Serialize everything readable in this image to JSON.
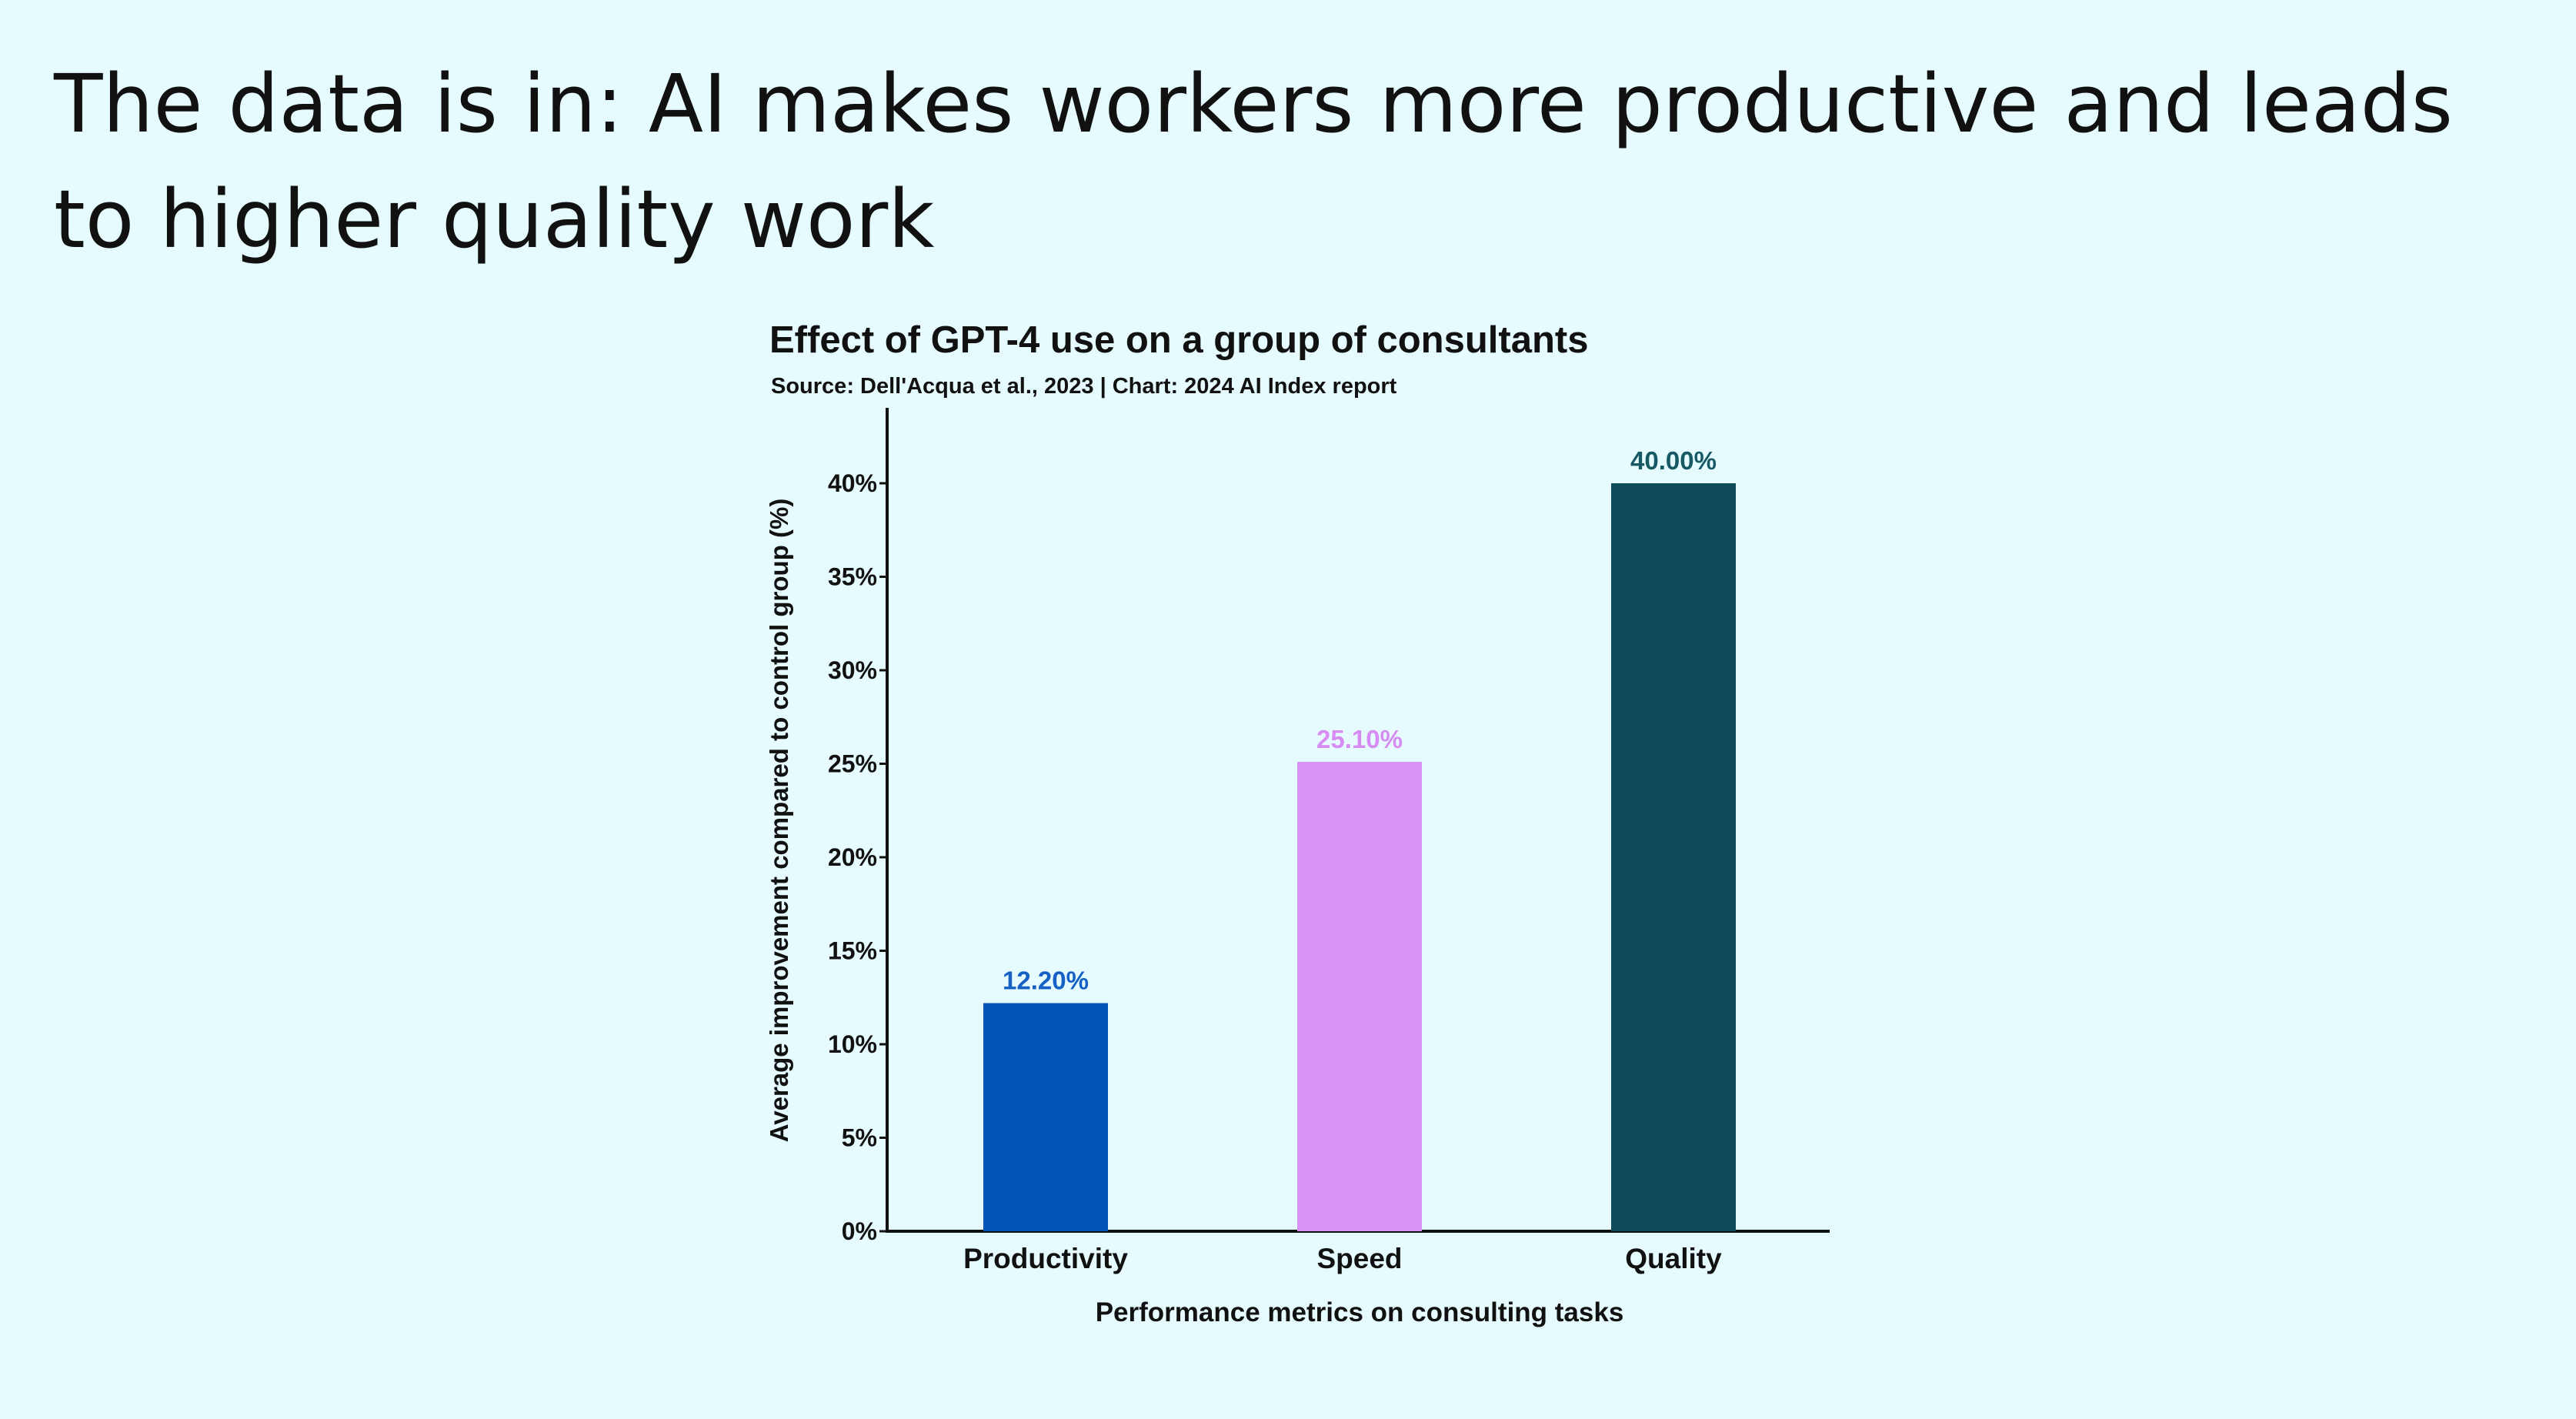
{
  "slide": {
    "title": "The data is in: AI makes workers more productive and leads to higher quality work"
  },
  "chart_data": {
    "type": "bar",
    "title": "Effect of GPT-4 use on a group of consultants",
    "subtitle": "Source: Dell'Acqua et al., 2023 | Chart: 2024 AI Index report",
    "xlabel": "Performance metrics on consulting tasks",
    "ylabel": "Average improvement compared to control group (%)",
    "categories": [
      "Productivity",
      "Speed",
      "Quality"
    ],
    "values": [
      12.2,
      25.1,
      40.0
    ],
    "data_labels": [
      "12.20%",
      "25.10%",
      "40.00%"
    ],
    "colors": [
      "#0054b5",
      "#d891f5",
      "#0d4b58"
    ],
    "label_colors": [
      "#1560c4",
      "#d68cf2",
      "#165965"
    ],
    "ylim": [
      0,
      42
    ],
    "yticks": [
      0,
      5,
      10,
      15,
      20,
      25,
      30,
      35,
      40
    ],
    "ytick_labels": [
      "0%",
      "5%",
      "10%",
      "15%",
      "20%",
      "25%",
      "30%",
      "35%",
      "40%"
    ],
    "grid": false,
    "legend": "none"
  }
}
